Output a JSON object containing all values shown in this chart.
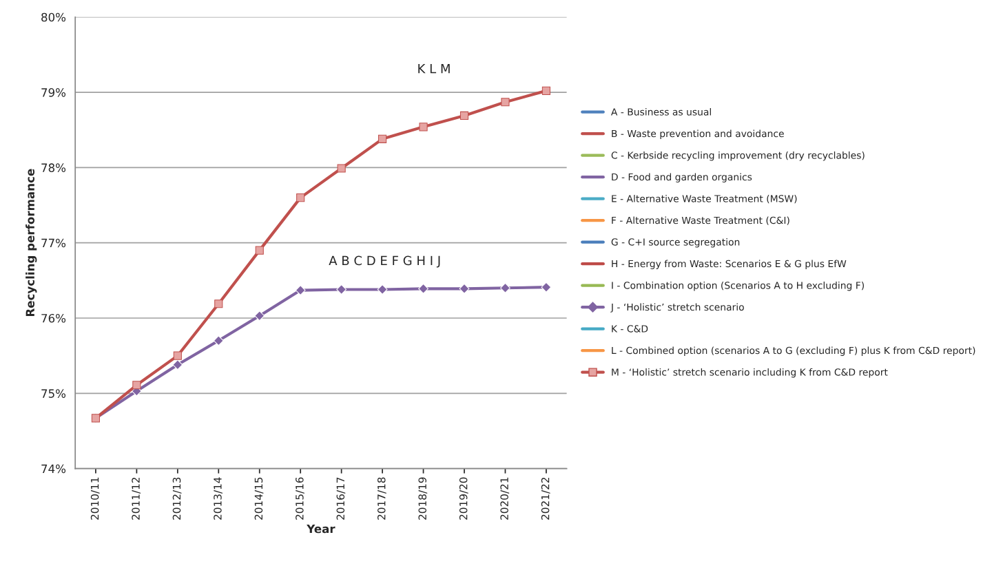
{
  "chart_data": {
    "type": "line",
    "xlabel": "Year",
    "ylabel": "Recycling performance",
    "categories": [
      "2010/11",
      "2011/12",
      "2012/13",
      "2013/14",
      "2014/15",
      "2015/16",
      "2016/17",
      "2017/18",
      "2018/19",
      "2019/20",
      "2020/21",
      "2021/22"
    ],
    "ylim": [
      74,
      80
    ],
    "yticks": [
      {
        "value": 74,
        "label": "74%"
      },
      {
        "value": 75,
        "label": "75%"
      },
      {
        "value": 76,
        "label": "76%"
      },
      {
        "value": 77,
        "label": "77%"
      },
      {
        "value": 78,
        "label": "78%"
      },
      {
        "value": 79,
        "label": "79%"
      },
      {
        "value": 80,
        "label": "80%"
      }
    ],
    "grid": "y",
    "legend": "right",
    "series": [
      {
        "name": "A - Business as usual",
        "color": "#4f81bd",
        "values": [
          null,
          null,
          null,
          null,
          null,
          null,
          null,
          null,
          null,
          null,
          null,
          null
        ]
      },
      {
        "name": "B - Waste prevention and avoidance",
        "color": "#c0504d",
        "values": [
          null,
          null,
          null,
          null,
          null,
          null,
          null,
          null,
          null,
          null,
          null,
          null
        ]
      },
      {
        "name": "C - Kerbside recycling improvement (dry recyclables)",
        "color": "#9bbb59",
        "values": [
          null,
          null,
          null,
          null,
          null,
          null,
          null,
          null,
          null,
          null,
          null,
          null
        ]
      },
      {
        "name": "D - Food and garden organics",
        "color": "#8064a2",
        "values": [
          null,
          null,
          null,
          null,
          null,
          null,
          null,
          null,
          null,
          null,
          null,
          null
        ]
      },
      {
        "name": "E - Alternative Waste Treatment (MSW)",
        "color": "#4bacc6",
        "values": [
          null,
          null,
          null,
          null,
          null,
          null,
          null,
          null,
          null,
          null,
          null,
          null
        ]
      },
      {
        "name": "F - Alternative Waste Treatment (C&I)",
        "color": "#f79646",
        "values": [
          null,
          null,
          null,
          null,
          null,
          null,
          null,
          null,
          null,
          null,
          null,
          null
        ]
      },
      {
        "name": "G - C+I source segregation",
        "color": "#4a7ebb",
        "values": [
          null,
          null,
          null,
          null,
          null,
          null,
          null,
          null,
          null,
          null,
          null,
          null
        ]
      },
      {
        "name": "H - Energy from Waste: Scenarios E & G plus EfW",
        "color": "#be4b48",
        "values": [
          null,
          null,
          null,
          null,
          null,
          null,
          null,
          null,
          null,
          null,
          null,
          null
        ]
      },
      {
        "name": "I - Combination option (Scenarios A to H excluding F)",
        "color": "#98b954",
        "values": [
          null,
          null,
          null,
          null,
          null,
          null,
          null,
          null,
          null,
          null,
          null,
          null
        ]
      },
      {
        "name": "J - ‘Holistic’ stretch scenario",
        "color": "#8064a2",
        "marker": "diamond",
        "values": [
          74.67,
          75.03,
          75.38,
          75.7,
          76.03,
          76.37,
          76.38,
          76.38,
          76.39,
          76.39,
          76.4,
          76.41
        ]
      },
      {
        "name": "K - C&D",
        "color": "#46aac5",
        "values": [
          null,
          null,
          null,
          null,
          null,
          null,
          null,
          null,
          null,
          null,
          null,
          null
        ]
      },
      {
        "name": "L - Combined option (scenarios A to G (excluding F) plus K from C&D report)",
        "color": "#f79646",
        "values": [
          null,
          null,
          null,
          null,
          null,
          null,
          null,
          null,
          null,
          null,
          null,
          null
        ]
      },
      {
        "name": "M - ‘Holistic’ stretch scenario including K from C&D report",
        "color": "#c0504d",
        "marker": "square",
        "values": [
          74.67,
          75.11,
          75.5,
          76.19,
          76.9,
          77.6,
          77.99,
          78.38,
          78.54,
          78.69,
          78.87,
          79.02
        ]
      }
    ],
    "annotations": [
      "A B C D E F G H I J",
      "K L M"
    ]
  }
}
